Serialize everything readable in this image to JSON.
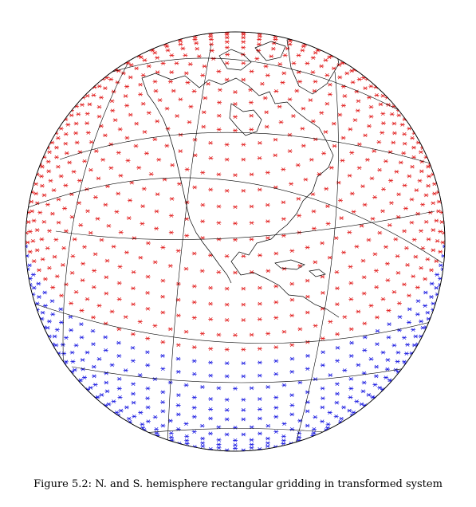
{
  "figure": {
    "caption": "Figure 5.2: N. and S. hemisphere rectangular gridding in transformed system",
    "colors": {
      "north_grid": "#e01010",
      "south_grid": "#1010e0",
      "coastline": "#000000",
      "graticule": "#000000",
      "background": "#ffffff"
    },
    "legend_semantics": [
      "red star markers: northern hemisphere grid points",
      "blue star markers: southern hemisphere grid points"
    ]
  }
}
